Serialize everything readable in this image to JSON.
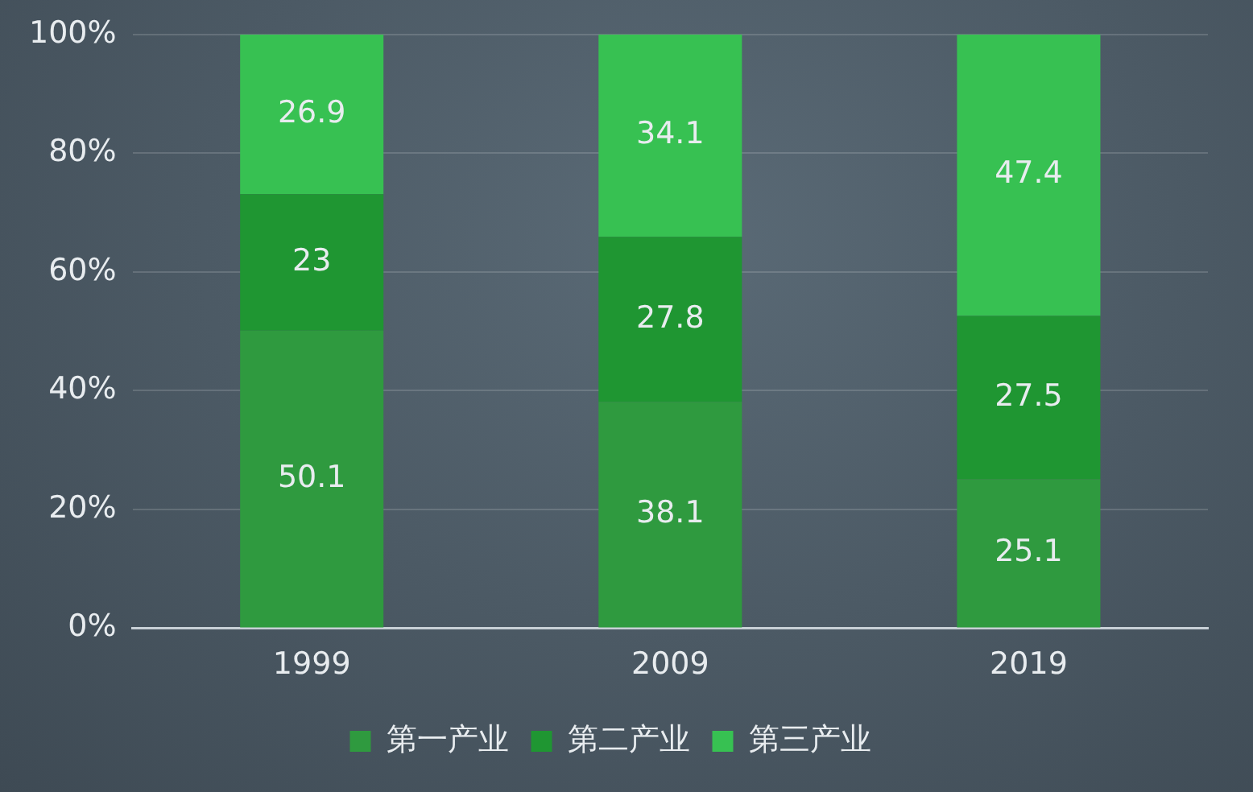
{
  "chart_data": {
    "type": "bar",
    "stacked": true,
    "categories": [
      "1999",
      "2009",
      "2019"
    ],
    "series": [
      {
        "name": "第一产业",
        "color": "#2f9a3f",
        "values": [
          50.1,
          38.1,
          25.1
        ]
      },
      {
        "name": "第二产业",
        "color": "#1f9632",
        "values": [
          23,
          27.8,
          27.5
        ]
      },
      {
        "name": "第三产业",
        "color": "#37c152",
        "values": [
          26.9,
          34.1,
          47.4
        ]
      }
    ],
    "ylim": [
      0,
      100
    ],
    "yticks": [
      {
        "value": 0,
        "label": "0%"
      },
      {
        "value": 20,
        "label": "20%"
      },
      {
        "value": 40,
        "label": "40%"
      },
      {
        "value": 60,
        "label": "60%"
      },
      {
        "value": 80,
        "label": "80%"
      },
      {
        "value": 100,
        "label": "100%"
      }
    ],
    "grid": "y",
    "legend": "bottom",
    "data_labels": true
  }
}
